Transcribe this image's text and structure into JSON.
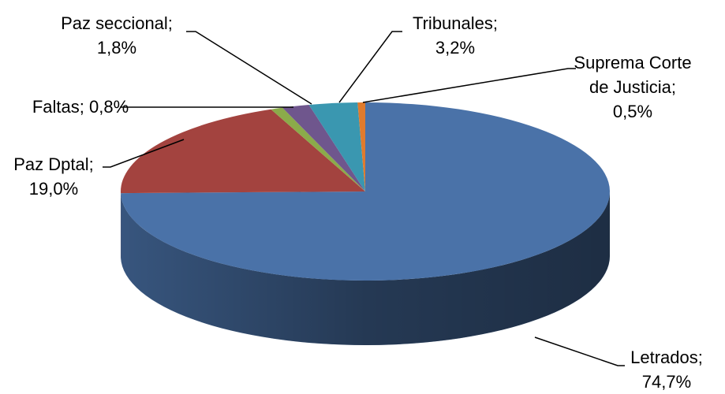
{
  "chart_data": {
    "type": "pie",
    "categories": [
      "Letrados;",
      "Paz Dptal;",
      "Faltas;",
      "Paz seccional;",
      "Tribunales;",
      "Suprema Corte de Justicia;"
    ],
    "values": [
      74.7,
      19.0,
      0.8,
      1.8,
      3.2,
      0.5
    ],
    "value_labels": [
      "74,7%",
      "19,0%",
      "0,8%",
      "1,8%",
      "3,2%",
      "0,5%"
    ],
    "colors": [
      "#4a72a8",
      "#a3433f",
      "#8bab4a",
      "#6f568d",
      "#3a97b0",
      "#e07b2d"
    ]
  }
}
